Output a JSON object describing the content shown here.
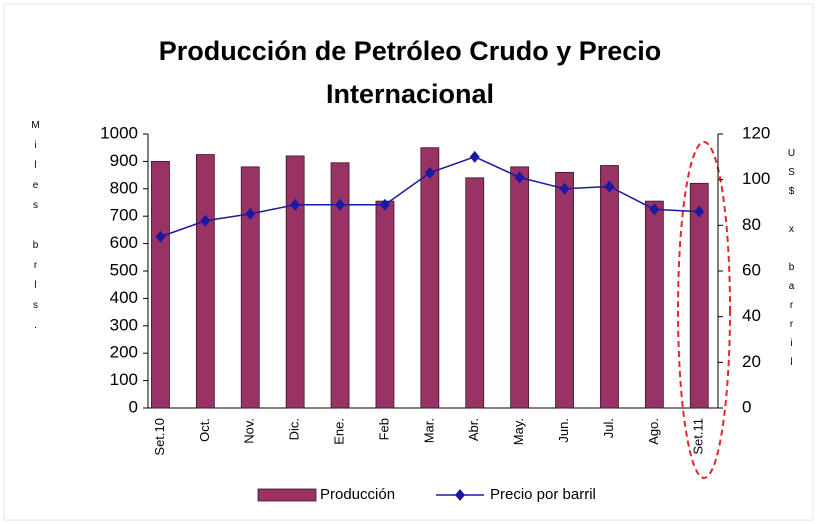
{
  "chart_data": {
    "type": "bar",
    "title": "Producción de Petróleo Crudo y Precio Internacional",
    "y_label": "Miles brls.",
    "y2_label": "US$ x barril",
    "categories": [
      "Set.10",
      "Oct.",
      "Nov.",
      "Dic.",
      "Ene.",
      "Feb",
      "Mar.",
      "Abr.",
      "May.",
      "Jun.",
      "Jul.",
      "Ago.",
      "Set.11"
    ],
    "series": [
      {
        "name": "Producción",
        "type": "bar",
        "color": "#993366",
        "values": [
          900,
          925,
          880,
          920,
          895,
          755,
          950,
          840,
          880,
          860,
          885,
          755,
          820
        ]
      },
      {
        "name": "Precio por barril",
        "type": "line",
        "axis": "y2",
        "color": "#1a1aa0",
        "values": [
          75,
          82,
          85,
          89,
          89,
          89,
          103,
          110,
          101,
          96,
          97,
          87,
          86
        ]
      }
    ],
    "ylim": [
      0,
      1000
    ],
    "yticks": [
      0,
      100,
      200,
      300,
      400,
      500,
      600,
      700,
      800,
      900,
      1000
    ],
    "y2lim": [
      0,
      120
    ],
    "y2ticks": [
      0,
      20,
      40,
      60,
      80,
      100,
      120
    ],
    "legend": "bottom"
  }
}
